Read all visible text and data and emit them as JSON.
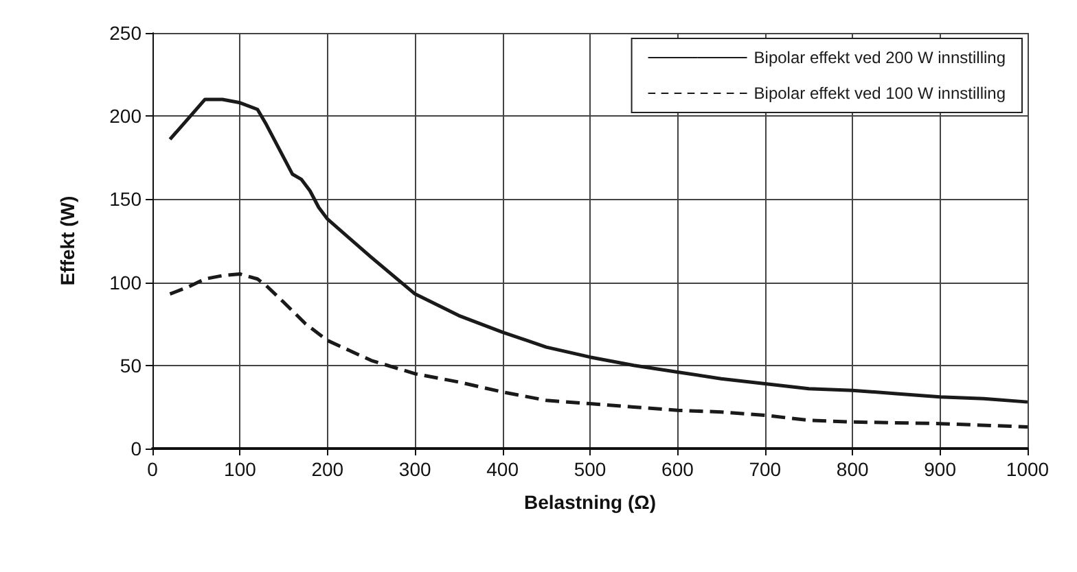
{
  "chart_data": {
    "type": "line",
    "xlabel": "Belastning (Ω)",
    "ylabel": "Effekt (W)",
    "xlim": [
      0,
      1000
    ],
    "xticks": [
      0,
      100,
      200,
      300,
      400,
      500,
      600,
      700,
      800,
      900,
      1000
    ],
    "ylim": [
      0,
      250
    ],
    "yticks": [
      0,
      50,
      100,
      150,
      200,
      250
    ],
    "grid": true,
    "legend": "top right",
    "marker": "none",
    "series": [
      {
        "name": "Bipolar effekt ved 200 W innstilling",
        "color": "#1a1a1a",
        "line_style": "solid",
        "x": [
          20,
          40,
          60,
          80,
          100,
          120,
          130,
          140,
          150,
          160,
          170,
          180,
          190,
          200,
          250,
          300,
          350,
          400,
          450,
          500,
          550,
          600,
          650,
          700,
          750,
          800,
          850,
          900,
          950,
          1000
        ],
        "values": [
          186,
          198,
          210,
          210,
          208,
          204,
          195,
          185,
          175,
          165,
          162,
          155,
          145,
          138,
          115,
          93,
          80,
          70,
          61,
          55,
          50,
          46,
          42,
          39,
          36,
          35,
          33,
          31,
          30,
          28
        ]
      },
      {
        "name": "Bipolar effekt ved 100 W innstilling",
        "color": "#1a1a1a",
        "line_style": "dashed",
        "x": [
          20,
          40,
          60,
          80,
          100,
          120,
          130,
          150,
          175,
          200,
          250,
          300,
          350,
          400,
          450,
          500,
          550,
          600,
          650,
          700,
          750,
          800,
          900,
          1000
        ],
        "values": [
          93,
          97,
          102,
          104,
          105,
          102,
          98,
          88,
          75,
          65,
          53,
          45,
          40,
          34,
          29,
          27,
          25,
          23,
          22,
          20,
          17,
          16,
          15,
          13
        ]
      }
    ]
  }
}
